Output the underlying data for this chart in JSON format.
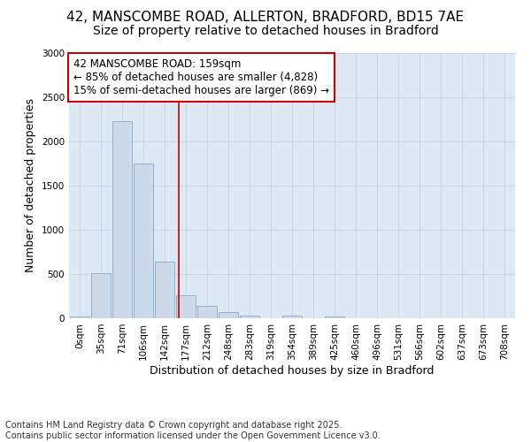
{
  "title_line1": "42, MANSCOMBE ROAD, ALLERTON, BRADFORD, BD15 7AE",
  "title_line2": "Size of property relative to detached houses in Bradford",
  "xlabel": "Distribution of detached houses by size in Bradford",
  "ylabel": "Number of detached properties",
  "bar_categories": [
    "0sqm",
    "35sqm",
    "71sqm",
    "106sqm",
    "142sqm",
    "177sqm",
    "212sqm",
    "248sqm",
    "283sqm",
    "319sqm",
    "354sqm",
    "389sqm",
    "425sqm",
    "460sqm",
    "496sqm",
    "531sqm",
    "566sqm",
    "602sqm",
    "637sqm",
    "673sqm",
    "708sqm"
  ],
  "bar_values": [
    20,
    510,
    2230,
    1750,
    640,
    260,
    145,
    70,
    30,
    0,
    30,
    0,
    20,
    0,
    0,
    0,
    0,
    0,
    0,
    0,
    0
  ],
  "bar_color": "#ccd9e8",
  "bar_edge_color": "#8fb0cc",
  "grid_color": "#c8d8e8",
  "background_color": "#dce8f4",
  "vline_x": 4.65,
  "vline_color": "#cc0000",
  "annotation_text": "42 MANSCOMBE ROAD: 159sqm\n← 85% of detached houses are smaller (4,828)\n15% of semi-detached houses are larger (869) →",
  "annotation_box_facecolor": "#ffffff",
  "annotation_box_edgecolor": "#cc0000",
  "ylim": [
    0,
    3000
  ],
  "yticks": [
    0,
    500,
    1000,
    1500,
    2000,
    2500,
    3000
  ],
  "footer_text": "Contains HM Land Registry data © Crown copyright and database right 2025.\nContains public sector information licensed under the Open Government Licence v3.0.",
  "title_fontsize": 11,
  "subtitle_fontsize": 10,
  "axis_label_fontsize": 9,
  "tick_fontsize": 7.5,
  "annotation_fontsize": 8.5,
  "footer_fontsize": 7
}
